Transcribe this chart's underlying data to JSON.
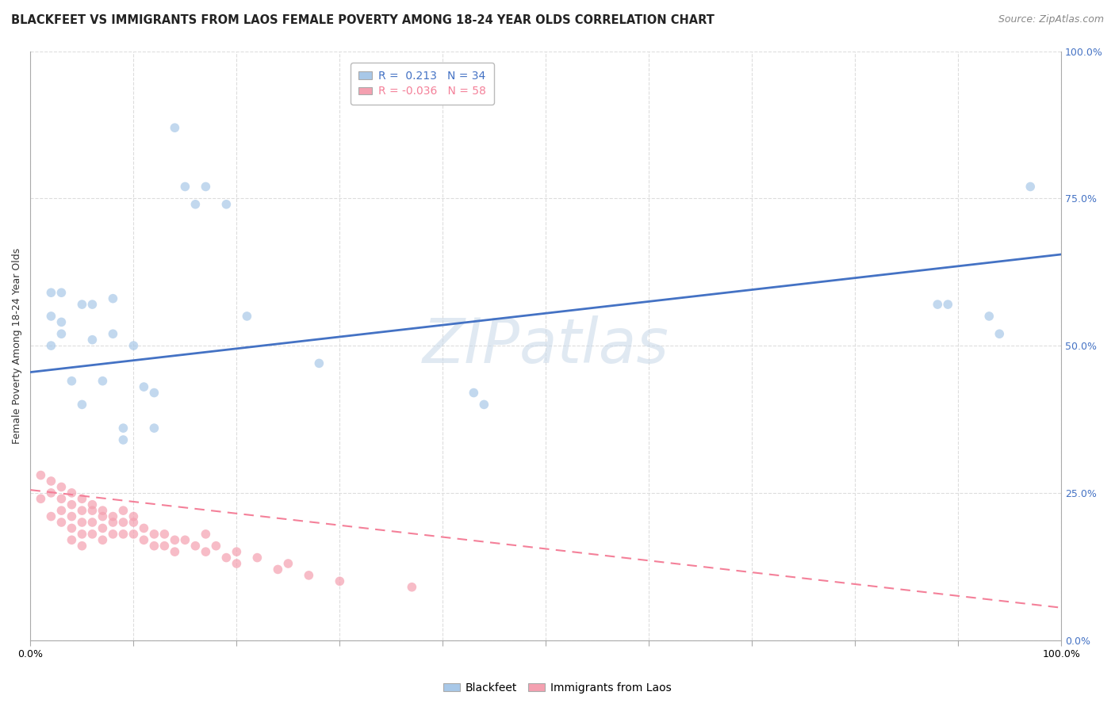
{
  "title": "BLACKFEET VS IMMIGRANTS FROM LAOS FEMALE POVERTY AMONG 18-24 YEAR OLDS CORRELATION CHART",
  "source": "Source: ZipAtlas.com",
  "ylabel": "Female Poverty Among 18-24 Year Olds",
  "watermark": "ZIPatlas",
  "legend_blue_label": "Blackfeet",
  "legend_pink_label": "Immigrants from Laos",
  "legend_blue_r": "R =  0.213",
  "legend_blue_n": "N = 34",
  "legend_pink_r": "R = -0.036",
  "legend_pink_n": "N = 58",
  "blue_color": "#a8c8e8",
  "pink_color": "#f4a0b0",
  "blue_line_color": "#4472c4",
  "pink_line_color": "#f48099",
  "right_tick_color": "#4472c4",
  "xmin": 0.0,
  "xmax": 1.0,
  "ymin": 0.0,
  "ymax": 1.0,
  "xticks": [
    0.0,
    0.1,
    0.2,
    0.3,
    0.4,
    0.5,
    0.6,
    0.7,
    0.8,
    0.9,
    1.0
  ],
  "yticks": [
    0.0,
    0.25,
    0.5,
    0.75,
    1.0
  ],
  "xtick_labels": [
    "0.0%",
    "",
    "",
    "",
    "",
    "",
    "",
    "",
    "",
    "",
    "100.0%"
  ],
  "ytick_labels_left": [
    "",
    "",
    "",
    "",
    ""
  ],
  "ytick_labels_right": [
    "0.0%",
    "25.0%",
    "50.0%",
    "75.0%",
    "100.0%"
  ],
  "blue_scatter_x": [
    0.02,
    0.02,
    0.02,
    0.03,
    0.03,
    0.03,
    0.04,
    0.05,
    0.05,
    0.06,
    0.06,
    0.07,
    0.08,
    0.08,
    0.09,
    0.09,
    0.1,
    0.11,
    0.12,
    0.12,
    0.14,
    0.15,
    0.16,
    0.17,
    0.19,
    0.21,
    0.28,
    0.43,
    0.44,
    0.88,
    0.89,
    0.93,
    0.94,
    0.97
  ],
  "blue_scatter_y": [
    0.59,
    0.55,
    0.5,
    0.59,
    0.54,
    0.52,
    0.44,
    0.57,
    0.4,
    0.57,
    0.51,
    0.44,
    0.58,
    0.52,
    0.36,
    0.34,
    0.5,
    0.43,
    0.42,
    0.36,
    0.87,
    0.77,
    0.74,
    0.77,
    0.74,
    0.55,
    0.47,
    0.42,
    0.4,
    0.57,
    0.57,
    0.55,
    0.52,
    0.77
  ],
  "pink_scatter_x": [
    0.01,
    0.01,
    0.02,
    0.02,
    0.02,
    0.03,
    0.03,
    0.03,
    0.03,
    0.04,
    0.04,
    0.04,
    0.04,
    0.04,
    0.05,
    0.05,
    0.05,
    0.05,
    0.05,
    0.06,
    0.06,
    0.06,
    0.06,
    0.07,
    0.07,
    0.07,
    0.07,
    0.08,
    0.08,
    0.08,
    0.09,
    0.09,
    0.09,
    0.1,
    0.1,
    0.1,
    0.11,
    0.11,
    0.12,
    0.12,
    0.13,
    0.13,
    0.14,
    0.14,
    0.15,
    0.16,
    0.17,
    0.17,
    0.18,
    0.19,
    0.2,
    0.2,
    0.22,
    0.24,
    0.25,
    0.27,
    0.3,
    0.37
  ],
  "pink_scatter_y": [
    0.28,
    0.24,
    0.27,
    0.25,
    0.21,
    0.26,
    0.24,
    0.22,
    0.2,
    0.25,
    0.23,
    0.21,
    0.19,
    0.17,
    0.24,
    0.22,
    0.2,
    0.18,
    0.16,
    0.23,
    0.22,
    0.2,
    0.18,
    0.22,
    0.21,
    0.19,
    0.17,
    0.21,
    0.2,
    0.18,
    0.22,
    0.2,
    0.18,
    0.21,
    0.2,
    0.18,
    0.19,
    0.17,
    0.18,
    0.16,
    0.18,
    0.16,
    0.17,
    0.15,
    0.17,
    0.16,
    0.18,
    0.15,
    0.16,
    0.14,
    0.15,
    0.13,
    0.14,
    0.12,
    0.13,
    0.11,
    0.1,
    0.09
  ],
  "blue_line_x_start": 0.0,
  "blue_line_x_end": 1.0,
  "blue_line_y_start": 0.455,
  "blue_line_y_end": 0.655,
  "pink_line_x_start": 0.0,
  "pink_line_x_end": 1.0,
  "pink_line_y_start": 0.255,
  "pink_line_y_end": 0.055,
  "grid_color": "#dddddd",
  "grid_linestyle": "--",
  "background_color": "#ffffff",
  "title_fontsize": 10.5,
  "axis_fontsize": 9,
  "tick_fontsize": 9,
  "source_fontsize": 9
}
